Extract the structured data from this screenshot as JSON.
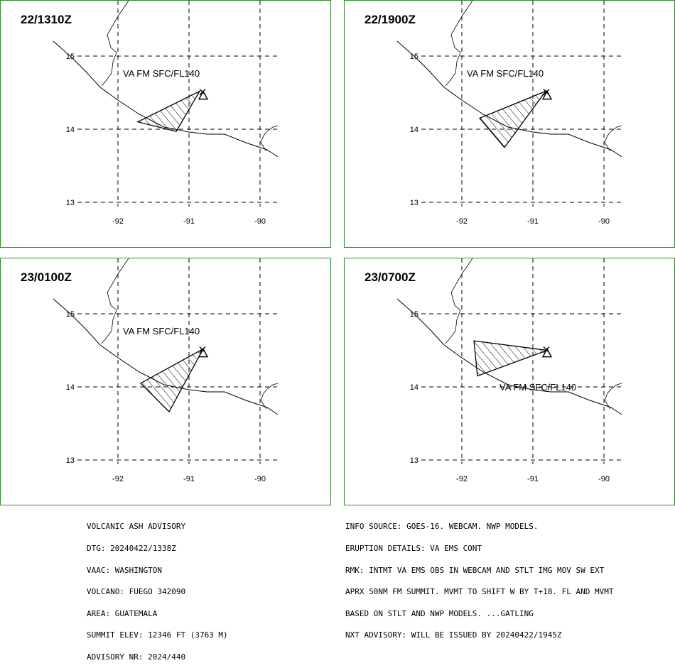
{
  "panels": [
    {
      "time": "22/1310Z",
      "label": "VA FM SFC/FL140",
      "label_pos": "above",
      "polygon": [
        [
          -90.85,
          14.52
        ],
        [
          -91.72,
          14.1
        ],
        [
          -91.18,
          13.97
        ]
      ]
    },
    {
      "time": "22/1900Z",
      "label": "VA FM SFC/FL140",
      "label_pos": "above",
      "polygon": [
        [
          -90.82,
          14.52
        ],
        [
          -91.75,
          14.15
        ],
        [
          -91.4,
          13.75
        ]
      ]
    },
    {
      "time": "23/0100Z",
      "label": "VA FM SFC/FL140",
      "label_pos": "above",
      "polygon": [
        [
          -90.8,
          14.52
        ],
        [
          -91.68,
          14.05
        ],
        [
          -91.28,
          13.66
        ]
      ]
    },
    {
      "time": "23/0700Z",
      "label": "VA FM SFC/FL140",
      "label_pos": "below",
      "polygon": [
        [
          -90.8,
          14.5
        ],
        [
          -91.83,
          14.63
        ],
        [
          -91.78,
          14.15
        ]
      ]
    }
  ],
  "map": {
    "volcano_marker": "triangle-x-icon",
    "lat_ticks": [
      "15",
      "14",
      "13"
    ],
    "lon_ticks": [
      "-92",
      "-91",
      "-90"
    ],
    "lat_values": [
      15,
      14,
      13
    ],
    "lon_values": [
      -92,
      -91,
      -90
    ]
  },
  "advisory_left": [
    "VOLCANIC ASH ADVISORY",
    "DTG: 20240422/1338Z",
    "VAAC: WASHINGTON",
    "VOLCANO: FUEGO 342090",
    "AREA: GUATEMALA",
    "SUMMIT ELEV: 12346 FT (3763 M)",
    "ADVISORY NR: 2024/440"
  ],
  "advisory_right": [
    "INFO SOURCE: GOES-16. WEBCAM. NWP MODELS.",
    "ERUPTION DETAILS: VA EMS CONT",
    "RMK: INTMT VA EMS OBS IN WEBCAM AND STLT IMG MOV SW EXT",
    "APRX 50NM FM SUMMIT. MVMT TO SHIFT W BY T+18. FL AND MVMT",
    "BASED ON STLT AND NWP MODELS. ...GATLING",
    "NXT ADVISORY: WILL BE ISSUED BY 20240422/1945Z"
  ]
}
